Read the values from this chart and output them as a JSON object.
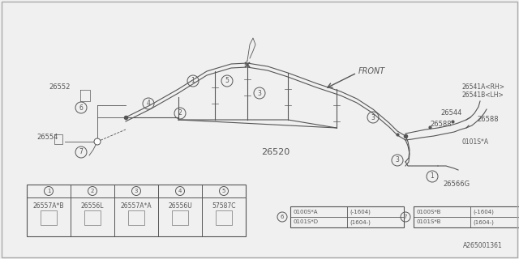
{
  "bg_color": "#f0f0f0",
  "inner_bg": "#ffffff",
  "lc": "#555555",
  "part_number": "A265001361",
  "front_label": "FRONT",
  "main_label": "26520",
  "parts_table": {
    "headers": [
      "1",
      "2",
      "3",
      "4",
      "5"
    ],
    "part_numbers": [
      "26557A*B",
      "26556L",
      "26557A*A",
      "26556U",
      "57587C"
    ]
  },
  "callout_table_6": [
    [
      "0100S*A",
      "(-1604)"
    ],
    [
      "0101S*D",
      "(1604-)"
    ]
  ],
  "callout_table_7": [
    [
      "0100S*B",
      "(-1604)"
    ],
    [
      "0101S*B",
      "(1604-)"
    ]
  ]
}
